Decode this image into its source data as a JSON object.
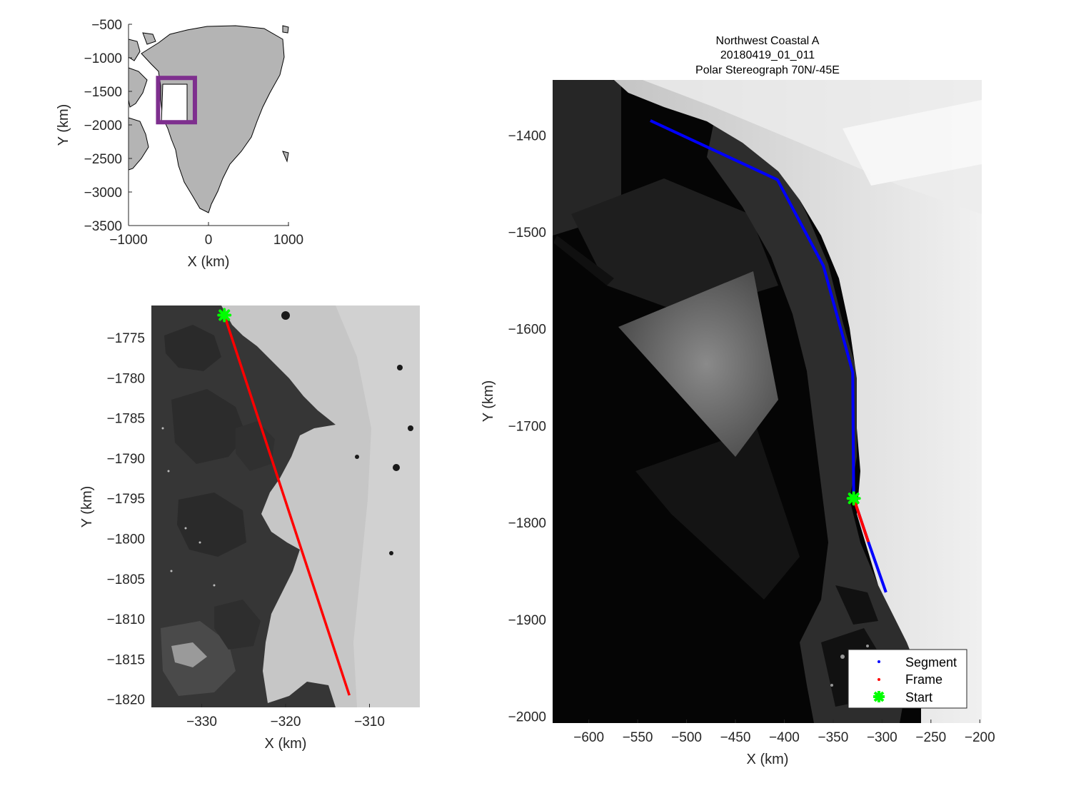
{
  "figure": {
    "title_lines": [
      "Northwest Coastal A",
      "20180419_01_011",
      "Polar Stereograph 70N/-45E"
    ]
  },
  "colors": {
    "segment": "#0000ff",
    "frame": "#ff0000",
    "start": "#00ff00",
    "box": "#7e2f8e",
    "land": "#b4b4b4"
  },
  "chart_data": [
    {
      "type": "map",
      "name": "overview",
      "xlabel": "X (km)",
      "ylabel": "Y (km)",
      "xlim": [
        -1000,
        1000
      ],
      "ylim": [
        -3500,
        -500
      ],
      "xticks": [
        -1000,
        0,
        1000
      ],
      "yticks": [
        -500,
        -1000,
        -1500,
        -2000,
        -2500,
        -3000,
        -3500
      ],
      "box": {
        "x": [
          -630,
          -170
        ],
        "y": [
          -1960,
          -1300
        ]
      }
    },
    {
      "type": "map",
      "name": "frame-zoom",
      "xlabel": "X (km)",
      "ylabel": "Y (km)",
      "xlim": [
        -336,
        -304
      ],
      "ylim": [
        -1821,
        -1771
      ],
      "xticks": [
        -330,
        -320,
        -310
      ],
      "yticks": [
        -1775,
        -1780,
        -1785,
        -1790,
        -1795,
        -1800,
        -1805,
        -1810,
        -1815,
        -1820
      ],
      "frame_line": [
        [
          -327.3,
          -1772.2
        ],
        [
          -312.4,
          -1819.5
        ]
      ],
      "start": [
        -327.3,
        -1772.2
      ]
    },
    {
      "type": "map",
      "name": "segment-map",
      "xlabel": "X (km)",
      "ylabel": "Y (km)",
      "xlim": [
        -637,
        -198
      ],
      "ylim": [
        -2007,
        -1343
      ],
      "xticks": [
        -600,
        -550,
        -500,
        -450,
        -400,
        -350,
        -300,
        -250,
        -200
      ],
      "yticks": [
        -1400,
        -1500,
        -1600,
        -1700,
        -1800,
        -1900,
        -2000
      ],
      "segment": [
        [
          -537,
          -1385
        ],
        [
          -407,
          -1446
        ],
        [
          -360,
          -1535
        ],
        [
          -330,
          -1645
        ],
        [
          -329,
          -1775
        ],
        [
          -314,
          -1820
        ],
        [
          -296,
          -1872
        ]
      ],
      "frame_line": [
        [
          -329,
          -1775
        ],
        [
          -314,
          -1820
        ]
      ],
      "start": [
        -329,
        -1775
      ],
      "legend": {
        "position": "bottom-right",
        "entries": [
          "Segment",
          "Frame",
          "Start"
        ]
      }
    }
  ]
}
